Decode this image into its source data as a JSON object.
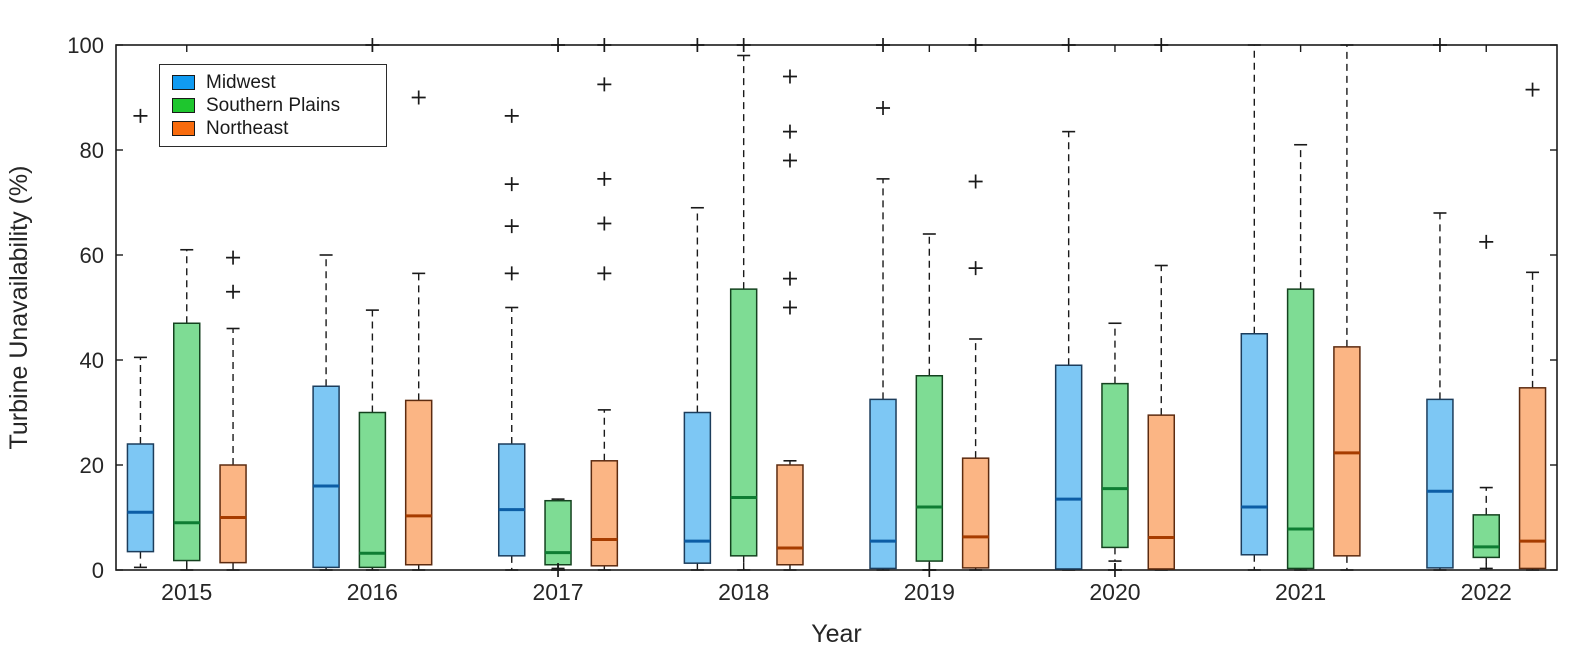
{
  "chart_data": {
    "type": "boxplot",
    "title": "",
    "xlabel": "Year",
    "ylabel": "Turbine Unavailability (%)",
    "ylim": [
      0,
      100
    ],
    "yticks": [
      0,
      20,
      40,
      60,
      80,
      100
    ],
    "grid": false,
    "legend_position": "top-left",
    "categories": [
      "2015",
      "2016",
      "2017",
      "2018",
      "2019",
      "2020",
      "2021",
      "2022"
    ],
    "series": [
      {
        "name": "Midwest",
        "legend_color": "#109bf2",
        "box_fill": "#7dc7f4",
        "box_edge": "#1c3d5c",
        "median_color": "#0c5da5",
        "boxes": [
          {
            "whisker_low": 0.5,
            "q1": 3.5,
            "median": 11,
            "q3": 24,
            "whisker_high": 40.5,
            "outliers": [
              86.5
            ]
          },
          {
            "whisker_low": 0,
            "q1": 0.5,
            "median": 16,
            "q3": 35,
            "whisker_high": 60,
            "outliers": []
          },
          {
            "whisker_low": 0,
            "q1": 2.7,
            "median": 11.5,
            "q3": 24,
            "whisker_high": 50,
            "outliers": [
              56.5,
              65.5,
              73.5,
              86.5
            ]
          },
          {
            "whisker_low": 0,
            "q1": 1.3,
            "median": 5.5,
            "q3": 30,
            "whisker_high": 69,
            "outliers": [
              100
            ]
          },
          {
            "whisker_low": 0,
            "q1": 0.3,
            "median": 5.5,
            "q3": 32.5,
            "whisker_high": 74.5,
            "outliers": [
              88,
              100
            ]
          },
          {
            "whisker_low": 0,
            "q1": 0.2,
            "median": 13.5,
            "q3": 39,
            "whisker_high": 83.5,
            "outliers": [
              100
            ]
          },
          {
            "whisker_low": 0,
            "q1": 2.9,
            "median": 12,
            "q3": 45,
            "whisker_high": 100,
            "outliers": []
          },
          {
            "whisker_low": 0,
            "q1": 0.4,
            "median": 15,
            "q3": 32.5,
            "whisker_high": 68,
            "outliers": [
              100
            ]
          }
        ]
      },
      {
        "name": "Southern Plains",
        "legend_color": "#1ec62e",
        "box_fill": "#7edc94",
        "box_edge": "#14421f",
        "median_color": "#0e7d33",
        "boxes": [
          {
            "whisker_low": 0,
            "q1": 1.8,
            "median": 9,
            "q3": 47,
            "whisker_high": 61,
            "outliers": []
          },
          {
            "whisker_low": 0,
            "q1": 0.5,
            "median": 3.2,
            "q3": 30,
            "whisker_high": 49.5,
            "outliers": [
              100
            ]
          },
          {
            "whisker_low": 0.3,
            "q1": 1,
            "median": 3.3,
            "q3": 13.2,
            "whisker_high": 13.5,
            "outliers": [
              0,
              100
            ]
          },
          {
            "whisker_low": 0,
            "q1": 2.7,
            "median": 13.8,
            "q3": 53.5,
            "whisker_high": 98,
            "outliers": [
              100
            ]
          },
          {
            "whisker_low": 0,
            "q1": 1.7,
            "median": 12,
            "q3": 37,
            "whisker_high": 64,
            "outliers": [
              0
            ]
          },
          {
            "whisker_low": 1.7,
            "q1": 4.3,
            "median": 15.5,
            "q3": 35.5,
            "whisker_high": 47,
            "outliers": [
              0
            ]
          },
          {
            "whisker_low": 0,
            "q1": 0.3,
            "median": 7.8,
            "q3": 53.5,
            "whisker_high": 81,
            "outliers": []
          },
          {
            "whisker_low": 0.3,
            "q1": 2.4,
            "median": 4.4,
            "q3": 10.5,
            "whisker_high": 15.7,
            "outliers": [
              62.5
            ]
          }
        ]
      },
      {
        "name": "Northeast",
        "legend_color": "#f86b0d",
        "box_fill": "#fbb584",
        "box_edge": "#5c2b10",
        "median_color": "#a63c00",
        "boxes": [
          {
            "whisker_low": 0,
            "q1": 1.4,
            "median": 10,
            "q3": 20,
            "whisker_high": 46,
            "outliers": [
              53,
              59.5
            ]
          },
          {
            "whisker_low": 0,
            "q1": 1,
            "median": 10.3,
            "q3": 32.3,
            "whisker_high": 56.5,
            "outliers": [
              90
            ]
          },
          {
            "whisker_low": 0,
            "q1": 0.8,
            "median": 5.8,
            "q3": 20.8,
            "whisker_high": 30.5,
            "outliers": [
              56.5,
              66,
              74.5,
              92.5,
              100
            ]
          },
          {
            "whisker_low": 0,
            "q1": 1,
            "median": 4.2,
            "q3": 20,
            "whisker_high": 20.8,
            "outliers": [
              50,
              55.5,
              78,
              83.5,
              94
            ]
          },
          {
            "whisker_low": 0,
            "q1": 0.4,
            "median": 6.3,
            "q3": 21.3,
            "whisker_high": 44,
            "outliers": [
              57.5,
              74,
              100
            ]
          },
          {
            "whisker_low": 0,
            "q1": 0.2,
            "median": 6.2,
            "q3": 29.5,
            "whisker_high": 58,
            "outliers": [
              100
            ]
          },
          {
            "whisker_low": 0,
            "q1": 2.7,
            "median": 22.3,
            "q3": 42.5,
            "whisker_high": 100,
            "outliers": []
          },
          {
            "whisker_low": 0,
            "q1": 0.3,
            "median": 5.5,
            "q3": 34.7,
            "whisker_high": 56.7,
            "outliers": [
              91.5
            ]
          }
        ]
      }
    ]
  }
}
